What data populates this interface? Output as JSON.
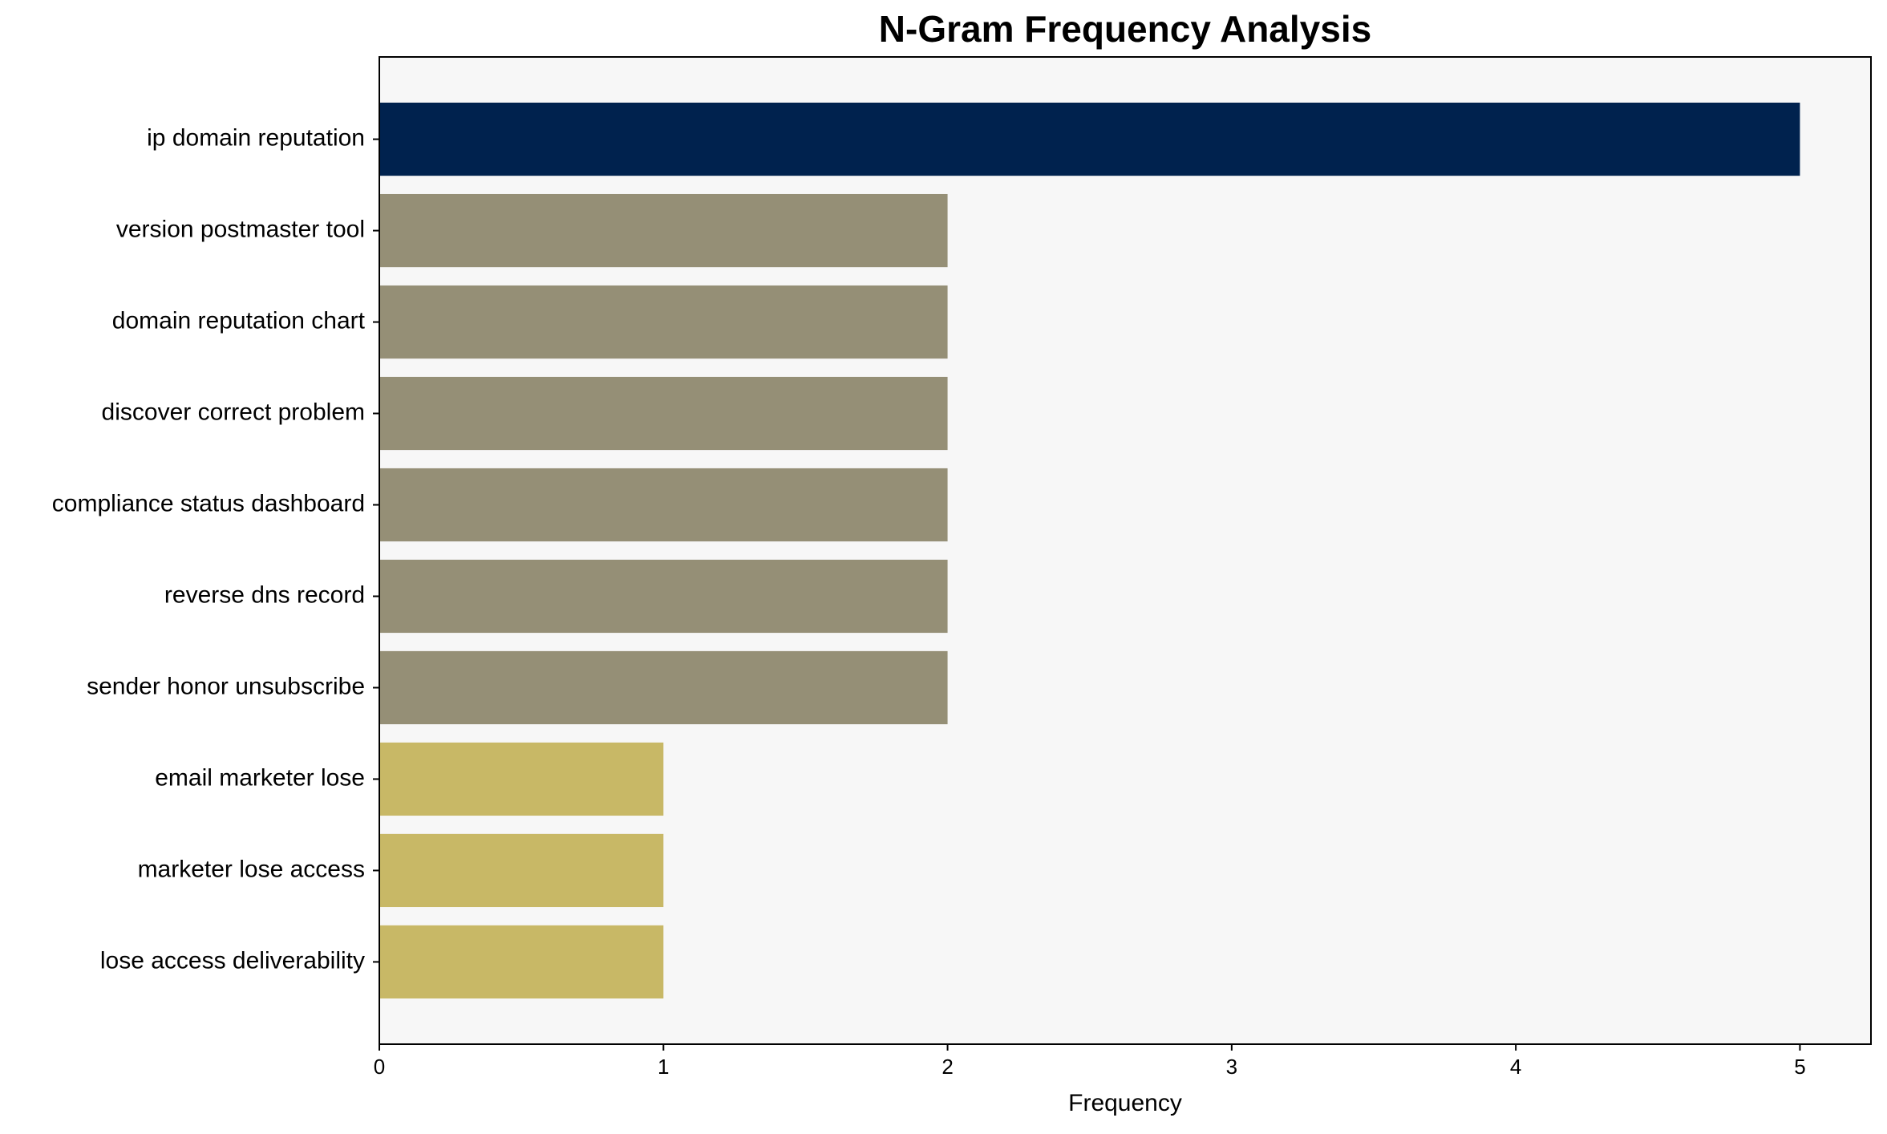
{
  "chart_data": {
    "type": "barh",
    "title": "N-Gram Frequency Analysis",
    "xlabel": "Frequency",
    "categories": [
      "ip domain reputation",
      "version postmaster tool",
      "domain reputation chart",
      "discover correct problem",
      "compliance status dashboard",
      "reverse dns record",
      "sender honor unsubscribe",
      "email marketer lose",
      "marketer lose access",
      "lose access deliverability"
    ],
    "values": [
      5,
      2,
      2,
      2,
      2,
      2,
      2,
      1,
      1,
      1
    ],
    "colors": [
      "#00224e",
      "#958f76",
      "#958f76",
      "#958f76",
      "#958f76",
      "#958f76",
      "#958f76",
      "#c8b866",
      "#c8b866",
      "#c8b866"
    ],
    "xlim": [
      0,
      5.25
    ],
    "xticks": [
      0,
      1,
      2,
      3,
      4,
      5
    ],
    "background": "#f7f7f7"
  }
}
